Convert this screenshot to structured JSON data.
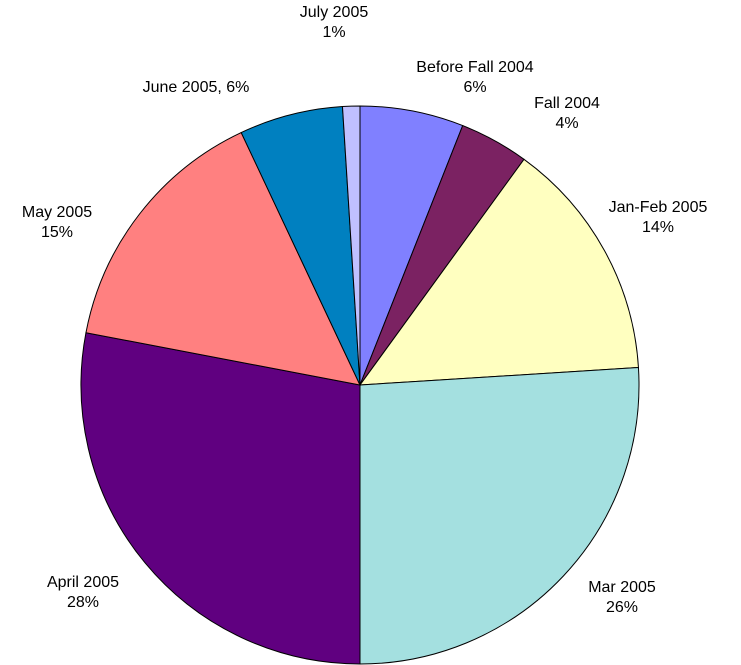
{
  "chart_data": {
    "type": "pie",
    "categories": [
      "Before Fall 2004",
      "Fall 2004",
      "Jan-Feb 2005",
      "Mar 2005",
      "April 2005",
      "May 2005",
      "June 2005",
      "July 2005"
    ],
    "values": [
      6,
      4,
      14,
      26,
      28,
      15,
      6,
      1
    ],
    "value_labels": [
      "6%",
      "4%",
      "14%",
      "26%",
      "28%",
      "15%",
      ", 6%",
      "1%"
    ],
    "colors": [
      "#8080ff",
      "#7b2262",
      "#ffffc0",
      "#a4e0e0",
      "#600080",
      "#ff8080",
      "#0080c0",
      "#c0c0ff"
    ],
    "start_angle": 90,
    "direction": "clockwise"
  }
}
